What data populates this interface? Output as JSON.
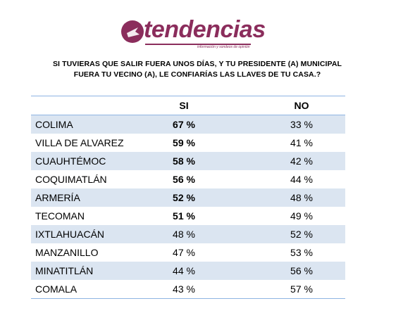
{
  "logo": {
    "text": "tendencias",
    "tagline": "información y sondeos de opinión"
  },
  "question": {
    "line1": "SI TUVIERAS QUE SALIR FUERA UNOS DÍAS, Y TU PRESIDENTE (A) MUNICIPAL",
    "line2": "FUERA TU VECINO (A),  LE CONFIARÍAS LAS LLAVES DE TU CASA.?"
  },
  "colors": {
    "brand": "#8b2d5c",
    "row_alt": "#dbe5f1",
    "rule": "#8eb4e3"
  },
  "chart_data": {
    "type": "table",
    "columns": [
      "",
      "SI",
      "NO"
    ],
    "rows": [
      {
        "name": "COLIMA",
        "si": "67 %",
        "no": "33 %",
        "si_bold": true
      },
      {
        "name": "VILLA DE ALVAREZ",
        "si": "59 %",
        "no": "41 %",
        "si_bold": true
      },
      {
        "name": "CUAUHTÉMOC",
        "si": "58 %",
        "no": "42 %",
        "si_bold": true
      },
      {
        "name": "COQUIMATLÁN",
        "si": "56 %",
        "no": "44 %",
        "si_bold": true
      },
      {
        "name": "ARMERÍA",
        "si": "52 %",
        "no": "48 %",
        "si_bold": true
      },
      {
        "name": "TECOMAN",
        "si": "51 %",
        "no": "49 %",
        "si_bold": true
      },
      {
        "name": "IXTLAHUACÁN",
        "si": "48 %",
        "no": "52 %",
        "si_bold": false
      },
      {
        "name": "MANZANILLO",
        "si": "47 %",
        "no": "53 %",
        "si_bold": false
      },
      {
        "name": "MINATITLÁN",
        "si": "44 %",
        "no": "56 %",
        "si_bold": false
      },
      {
        "name": "COMALA",
        "si": "43 %",
        "no": "57 %",
        "si_bold": false
      }
    ]
  }
}
